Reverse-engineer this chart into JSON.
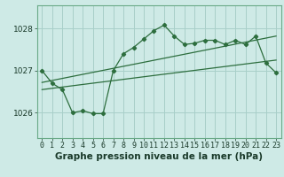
{
  "bg_color": "#ceeae6",
  "grid_color": "#a8cfc9",
  "line_color": "#2d6e3e",
  "title": "Graphe pression niveau de la mer (hPa)",
  "ylim": [
    1025.4,
    1028.55
  ],
  "xlim": [
    -0.5,
    23.5
  ],
  "yticks": [
    1026,
    1027,
    1028
  ],
  "xticks": [
    0,
    1,
    2,
    3,
    4,
    5,
    6,
    7,
    8,
    9,
    10,
    11,
    12,
    13,
    14,
    15,
    16,
    17,
    18,
    19,
    20,
    21,
    22,
    23
  ],
  "series1_x": [
    0,
    1,
    2,
    3,
    4,
    5,
    6,
    7,
    8,
    9,
    10,
    11,
    12,
    13,
    14,
    15,
    16,
    17,
    18,
    19,
    20,
    21,
    22,
    23
  ],
  "series1_y": [
    1027.0,
    1026.7,
    1026.55,
    1026.0,
    1026.05,
    1025.98,
    1025.98,
    1027.0,
    1027.4,
    1027.55,
    1027.75,
    1027.95,
    1028.08,
    1027.82,
    1027.62,
    1027.65,
    1027.72,
    1027.72,
    1027.62,
    1027.72,
    1027.62,
    1027.82,
    1027.18,
    1026.95
  ],
  "series2_x": [
    0,
    23
  ],
  "series2_y": [
    1026.55,
    1027.25
  ],
  "series3_x": [
    0,
    23
  ],
  "series3_y": [
    1026.72,
    1027.82
  ],
  "title_fontsize": 7.5,
  "tick_fontsize": 6.0,
  "ytick_fontsize": 6.5
}
